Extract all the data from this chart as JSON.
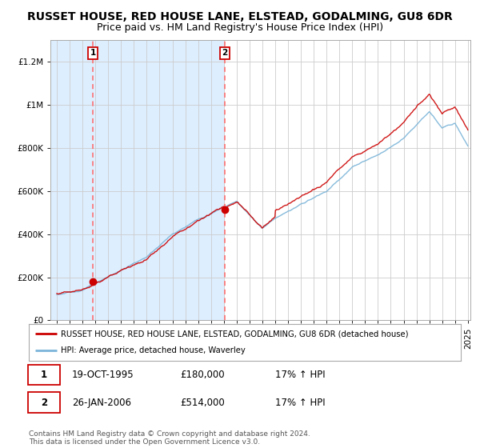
{
  "title": "RUSSET HOUSE, RED HOUSE LANE, ELSTEAD, GODALMING, GU8 6DR",
  "subtitle": "Price paid vs. HM Land Registry's House Price Index (HPI)",
  "ylim": [
    0,
    1300000
  ],
  "yticks": [
    0,
    200000,
    400000,
    600000,
    800000,
    1000000,
    1200000
  ],
  "ytick_labels": [
    "£0",
    "£200K",
    "£400K",
    "£600K",
    "£800K",
    "£1M",
    "£1.2M"
  ],
  "x_start_year": 1993,
  "x_end_year": 2025,
  "purchase1": {
    "date": "19-OCT-1995",
    "year": 1995.8,
    "price": 180000,
    "label": "1"
  },
  "purchase2": {
    "date": "26-JAN-2006",
    "year": 2006.07,
    "price": 514000,
    "label": "2"
  },
  "hpi_line_color": "#7ab4d8",
  "price_line_color": "#cc0000",
  "dashed_line_color": "#ff6666",
  "bg_fill_color": "#ddeeff",
  "legend_house_label": "RUSSET HOUSE, RED HOUSE LANE, ELSTEAD, GODALMING, GU8 6DR (detached house)",
  "legend_hpi_label": "HPI: Average price, detached house, Waverley",
  "row1": [
    "1",
    "19-OCT-1995",
    "£180,000",
    "17% ↑ HPI"
  ],
  "row2": [
    "2",
    "26-JAN-2006",
    "£514,000",
    "17% ↑ HPI"
  ],
  "footnote": "Contains HM Land Registry data © Crown copyright and database right 2024.\nThis data is licensed under the Open Government Licence v3.0.",
  "title_fontsize": 10,
  "subtitle_fontsize": 9,
  "tick_fontsize": 7.5
}
